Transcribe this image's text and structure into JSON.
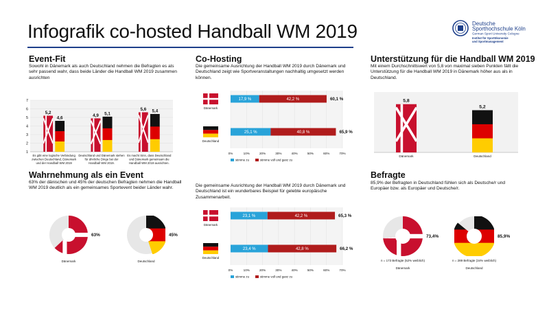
{
  "title": "Infografik co-hosted Handball WM 2019",
  "logo": {
    "name_line1": "Deutsche",
    "name_line2": "Sporthochschule Köln",
    "name_line3": "German Sport University Cologne",
    "dept_line1": "Institut für Sportökonomie",
    "dept_line2": "und Sportmanagement"
  },
  "colors": {
    "dk_red": "#c8102e",
    "de_black": "#111111",
    "de_red": "#dd0000",
    "de_gold": "#ffcc00",
    "blue": "#29a3d9",
    "darkred": "#b01c1c",
    "brand_blue": "#1d3f8a"
  },
  "sections": {
    "event_fit": {
      "title": "Event-Fit",
      "description": "Sowohl in Dänemark als auch Deutschland nehmen die Befragten es als sehr passend wahr, dass beide Länder die Handball WM 2019 zusammen ausrichten"
    },
    "cohosting": {
      "title": "Co-Hosting",
      "description": "Die gemeinsame Ausrichtung der Handball WM 2019 durch Dänemark und Deutschland zeigt wie Sportveranstaltungen nachhaltig umgesetzt werden können."
    },
    "support": {
      "title": "Unterstützung für die Handball WM 2019",
      "description": "Mit einem Durchschnittswert von 5,8 von maximal sieben Punkten fällt die Unterstützung für die Handball WM 2019 in Dänemark höher aus als in Deutschland."
    },
    "perception": {
      "title": "Wahrnehmung als ein Event",
      "description": "63% der dänischen und 45% der deutschen Befragten nehmen die Handball WM 2019 deutlich als ein gemeinsames Sportevent beider Länder wahr."
    },
    "europe": {
      "description": "Die gemeinsame Ausrichtung der Handball WM 2019 durch Dänemark und Deutschland ist ein wunderbares Beispiel für gelebte europäische Zusammenarbeit."
    },
    "respondents": {
      "title": "Befragte",
      "description": "85,9% der Befragten in Deutschland fühlen sich als Deutsche/r und Europäer bzw. als Europäer und Deutsche/r."
    }
  },
  "chart_data": [
    {
      "id": "event_fit",
      "type": "bar",
      "categories": [
        "Es gibt eine logische Verbindung zwischen Deutschland, Dänemark und der Handball WM 2019",
        "Deutschland und Dänemark stehen für ähnliche Dinge bei der Handball WM 2019.",
        "Es macht Sinn, dass Deutschland und Dänemark gemeinsam die Handball WM 2019 ausrichten."
      ],
      "series": [
        {
          "values": [
            5.2,
            4.9,
            5.6
          ],
          "value_labels": [
            "5,2",
            "4,9",
            "5,6"
          ]
        },
        {
          "values": [
            4.6,
            5.1,
            5.4
          ],
          "value_labels": [
            "4,6",
            "5,1",
            "5,4"
          ]
        }
      ],
      "yticks": [
        "1",
        "2",
        "3",
        "4",
        "5",
        "6",
        "7"
      ],
      "ylim": [
        1,
        7
      ]
    },
    {
      "id": "cohosting",
      "type": "bar",
      "orientation": "horizontal",
      "stacked": true,
      "categories": [
        "Dänemark",
        "Deutschland"
      ],
      "series": [
        {
          "name": "stimme zu",
          "values": [
            17.9,
            25.1
          ],
          "value_labels": [
            "17,9 %",
            "25,1 %"
          ]
        },
        {
          "name": "stimme voll und ganz zu",
          "values": [
            42.2,
            40.8
          ],
          "value_labels": [
            "42,2 %",
            "40,8 %"
          ]
        }
      ],
      "totals": [
        "60,1 %",
        "65,9 %"
      ],
      "xticks": [
        "0%",
        "10%",
        "20%",
        "30%",
        "40%",
        "50%",
        "60%",
        "70%"
      ],
      "xlim": [
        0,
        70
      ]
    },
    {
      "id": "support",
      "type": "bar",
      "categories": [
        "Dänemark",
        "Deutschland"
      ],
      "values": [
        5.8,
        5.2
      ],
      "value_labels": [
        "5,8",
        "5,2"
      ],
      "ylim": [
        1,
        7
      ]
    },
    {
      "id": "perception",
      "type": "pie",
      "categories": [
        "Dänemark",
        "Deutschland"
      ],
      "values": [
        63,
        45
      ],
      "value_labels": [
        "63%",
        "45%"
      ]
    },
    {
      "id": "europe",
      "type": "bar",
      "orientation": "horizontal",
      "stacked": true,
      "categories": [
        "Dänemark",
        "Deutschland"
      ],
      "series": [
        {
          "name": "stimme zu",
          "values": [
            23.1,
            23.4
          ],
          "value_labels": [
            "23,1 %",
            "23,4 %"
          ]
        },
        {
          "name": "stimme voll und ganz zu",
          "values": [
            42.2,
            42.8
          ],
          "value_labels": [
            "42,2 %",
            "42,8 %"
          ]
        }
      ],
      "totals": [
        "65,3 %",
        "66,2 %"
      ],
      "xticks": [
        "0%",
        "10%",
        "20%",
        "30%",
        "40%",
        "50%",
        "60%",
        "70%"
      ],
      "xlim": [
        0,
        70
      ]
    },
    {
      "id": "respondents",
      "type": "pie",
      "categories": [
        "Dänemark",
        "Deutschland"
      ],
      "values": [
        73.4,
        85.9
      ],
      "value_labels": [
        "73,4%",
        "85,9%"
      ],
      "notes": [
        "n = 173 Befragte (52% weiblich)",
        "n = 289 Befragte (34% weiblich)"
      ]
    }
  ]
}
